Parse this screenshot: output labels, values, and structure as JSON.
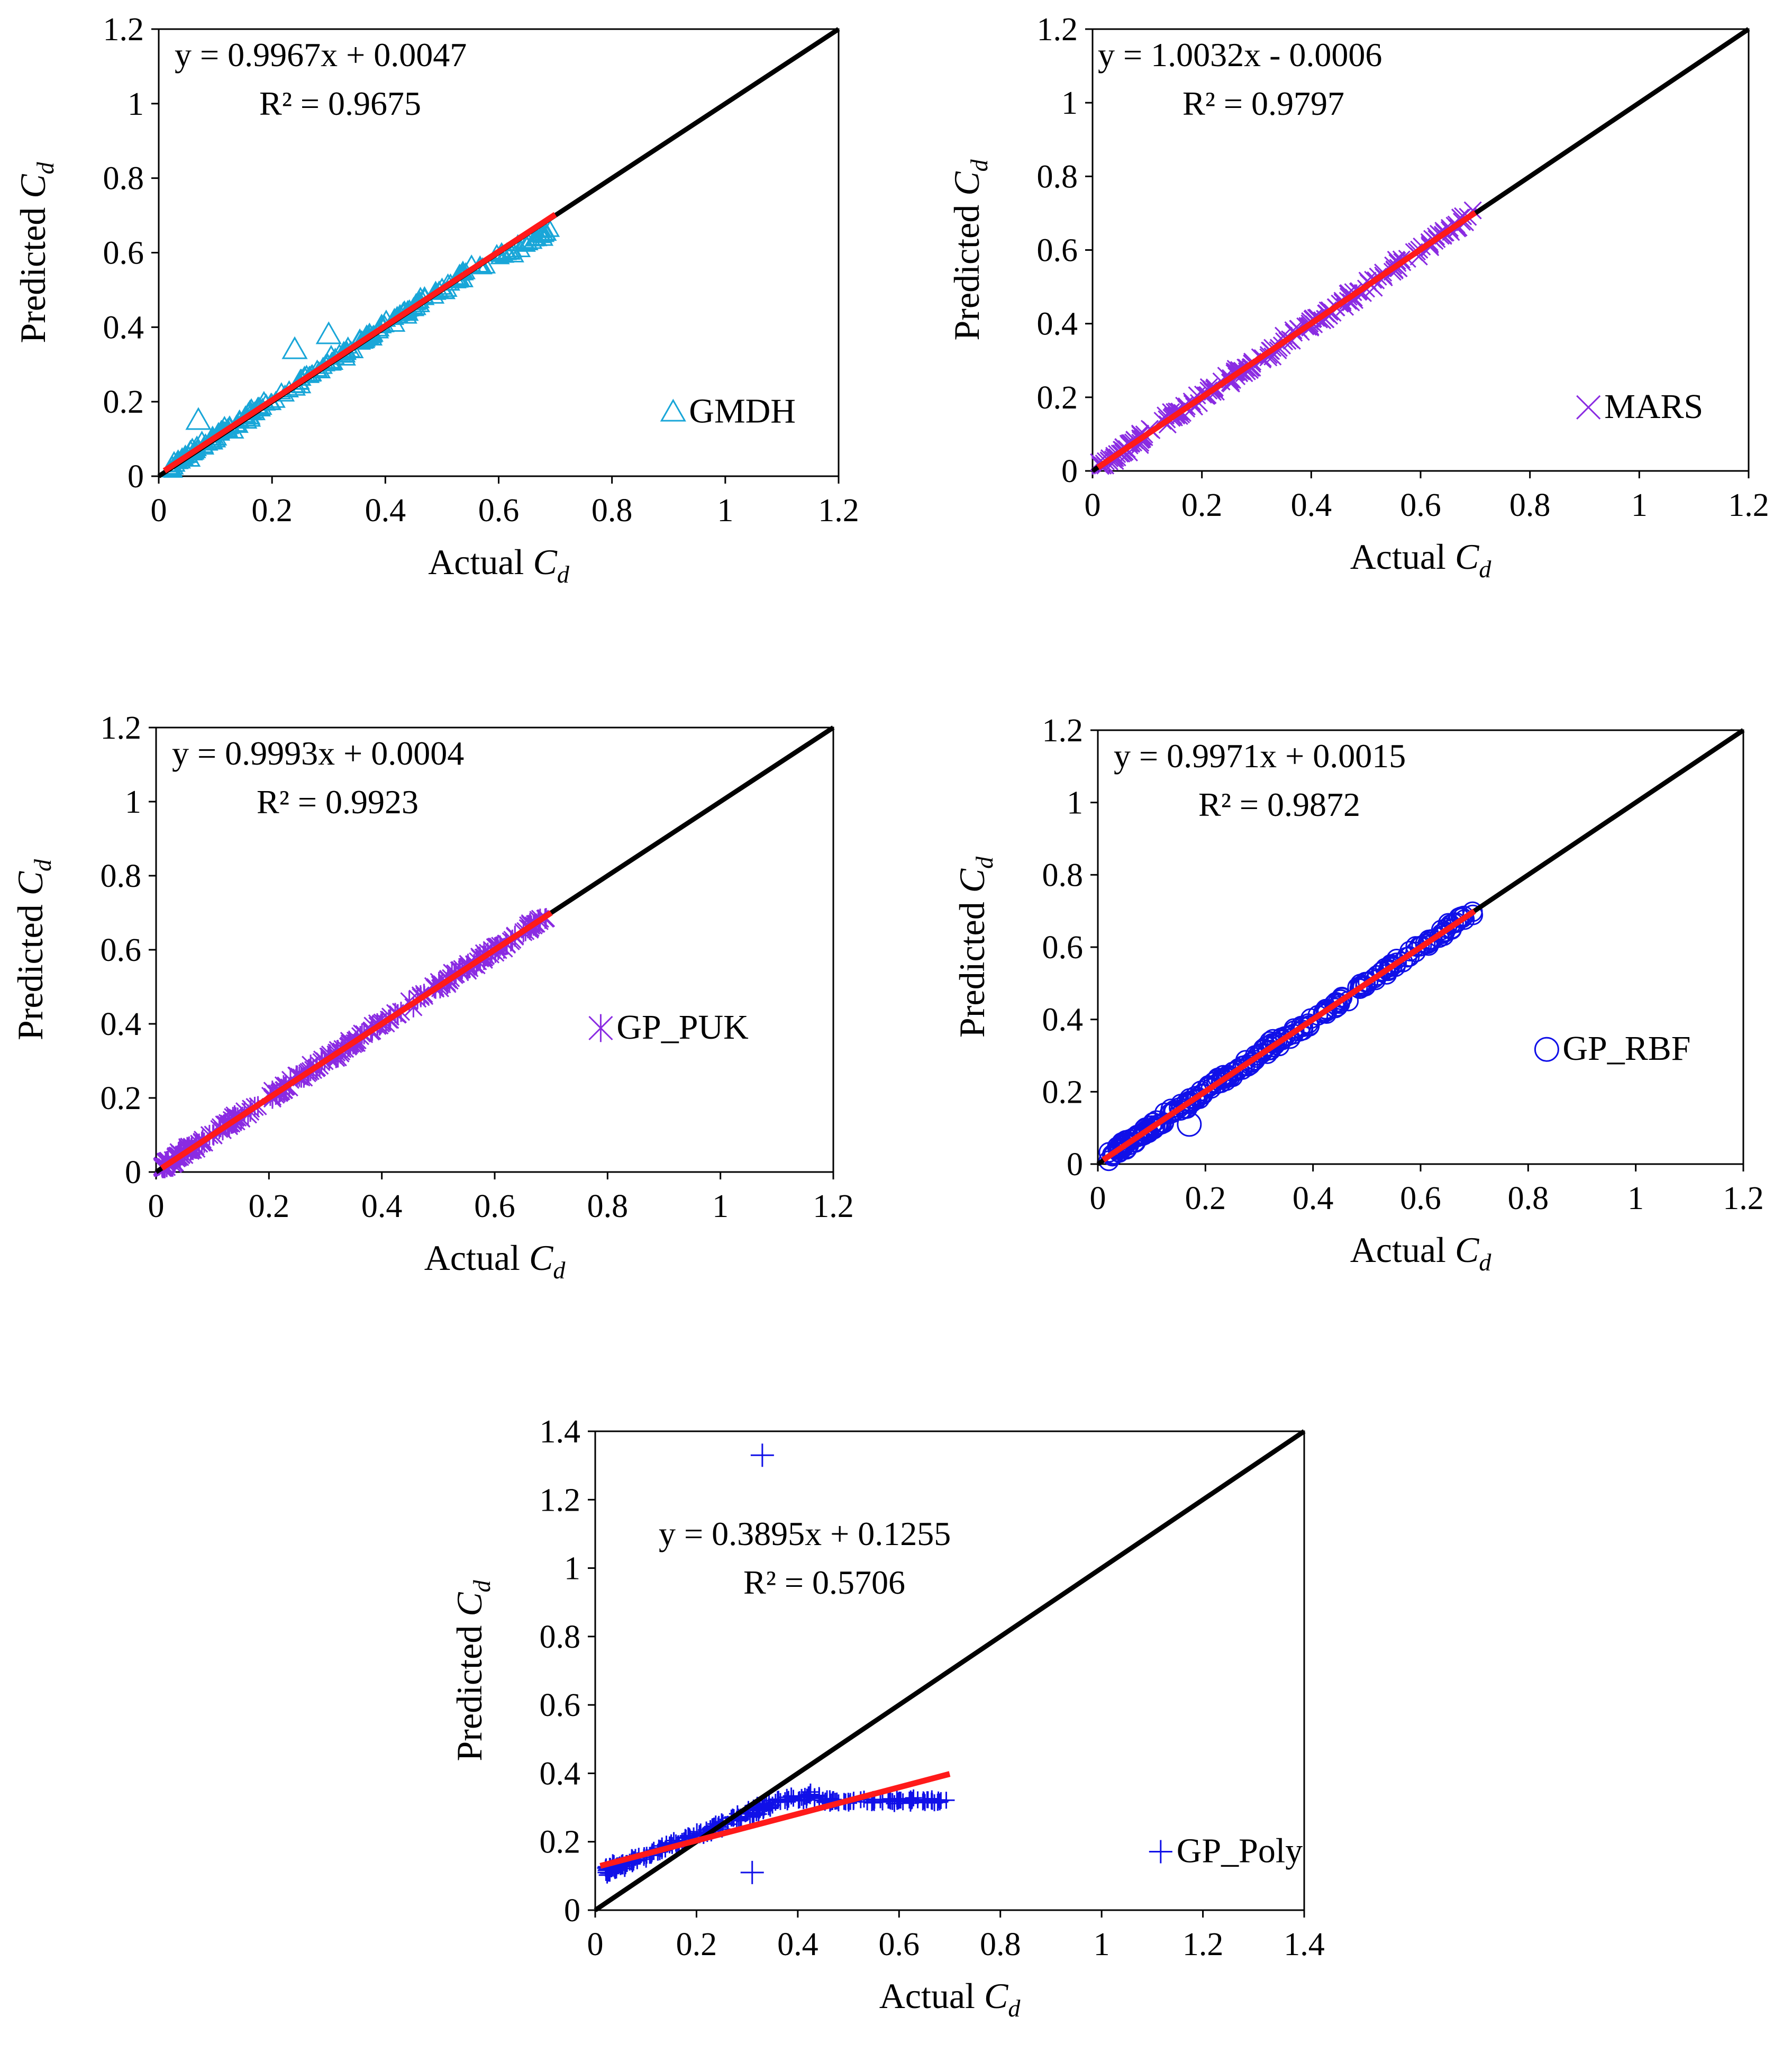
{
  "chart_data": [
    {
      "type": "scatter",
      "model": "GMDH",
      "xlabel": "Actual",
      "ylabel": "Predicted",
      "subscript": "d",
      "symbol": "C",
      "xlim": [
        0,
        1.2
      ],
      "ylim": [
        0,
        1.2
      ],
      "xticks": [
        "0",
        "0.2",
        "0.4",
        "0.6",
        "0.8",
        "1",
        "1.2"
      ],
      "yticks": [
        "0",
        "0.2",
        "0.4",
        "0.6",
        "0.8",
        "1",
        "1.2"
      ],
      "equation": "y = 0.9967x + 0.0047",
      "r2": "R² = 0.9675",
      "slope": 0.9967,
      "intercept": 0.0047,
      "legend": "GMDH",
      "marker": "triangle",
      "color": "#19A6D8",
      "data_range": [
        0.02,
        0.7
      ],
      "outliers": [
        [
          0.24,
          0.34
        ],
        [
          0.07,
          0.15
        ],
        [
          0.3,
          0.38
        ]
      ]
    },
    {
      "type": "scatter",
      "model": "MARS",
      "xlabel": "Actual",
      "ylabel": "Predicted",
      "subscript": "d",
      "symbol": "C",
      "xlim": [
        0,
        1.2
      ],
      "ylim": [
        0,
        1.2
      ],
      "xticks": [
        "0",
        "0.2",
        "0.4",
        "0.6",
        "0.8",
        "1",
        "1.2"
      ],
      "yticks": [
        "0",
        "0.2",
        "0.4",
        "0.6",
        "0.8",
        "1",
        "1.2"
      ],
      "equation": "y = 1.0032x - 0.0006",
      "r2": "R² = 0.9797",
      "slope": 1.0032,
      "intercept": -0.0006,
      "legend": "MARS",
      "marker": "x",
      "color": "#8A2BE2",
      "data_range": [
        0.01,
        0.7
      ],
      "outliers": []
    },
    {
      "type": "scatter",
      "model": "GP_PUK",
      "xlabel": "Actual",
      "ylabel": "Predicted",
      "subscript": "d",
      "symbol": "C",
      "xlim": [
        0,
        1.2
      ],
      "ylim": [
        0,
        1.2
      ],
      "xticks": [
        "0",
        "0.2",
        "0.4",
        "0.6",
        "0.8",
        "1",
        "1.2"
      ],
      "yticks": [
        "0",
        "0.2",
        "0.4",
        "0.6",
        "0.8",
        "1",
        "1.2"
      ],
      "equation": "y = 0.9993x + 0.0004",
      "r2": "R² = 0.9923",
      "slope": 0.9993,
      "intercept": 0.0004,
      "legend": "GP_PUK",
      "marker": "asterisk",
      "color": "#8A2BE2",
      "data_range": [
        0.01,
        0.7
      ],
      "outliers": []
    },
    {
      "type": "scatter",
      "model": "GP_RBF",
      "xlabel": "Actual",
      "ylabel": "Predicted",
      "subscript": "d",
      "symbol": "C",
      "xlim": [
        0,
        1.2
      ],
      "ylim": [
        0,
        1.2
      ],
      "xticks": [
        "0",
        "0.2",
        "0.4",
        "0.6",
        "0.8",
        "1",
        "1.2"
      ],
      "yticks": [
        "0",
        "0.2",
        "0.4",
        "0.6",
        "0.8",
        "1",
        "1.2"
      ],
      "equation": "y = 0.9971x + 0.0015",
      "r2": "R² = 0.9872",
      "slope": 0.9971,
      "intercept": 0.0015,
      "legend": "GP_RBF",
      "marker": "circle",
      "color": "#1010E8",
      "data_range": [
        0.02,
        0.7
      ],
      "outliers": [
        [
          0.17,
          0.11
        ]
      ]
    },
    {
      "type": "scatter",
      "model": "GP_Poly",
      "xlabel": "Actual",
      "ylabel": "Predicted",
      "subscript": "d",
      "symbol": "C",
      "xlim": [
        0,
        1.4
      ],
      "ylim": [
        0,
        1.4
      ],
      "xticks": [
        "0",
        "0.2",
        "0.4",
        "0.6",
        "0.8",
        "1",
        "1.2",
        "1.4"
      ],
      "yticks": [
        "0",
        "0.2",
        "0.4",
        "0.6",
        "0.8",
        "1",
        "1.2",
        "1.4"
      ],
      "equation": "y = 0.3895x + 0.1255",
      "r2": "R² = 0.5706",
      "slope": 0.3895,
      "intercept": 0.1255,
      "legend": "GP_Poly",
      "marker": "plus",
      "color": "#1010E8",
      "data_range": [
        0.02,
        0.7
      ],
      "outliers": [
        [
          0.33,
          1.33
        ],
        [
          0.31,
          0.11
        ]
      ]
    }
  ],
  "colors": {
    "fit_line": "#FF1A1A",
    "identity_line": "#000000"
  }
}
